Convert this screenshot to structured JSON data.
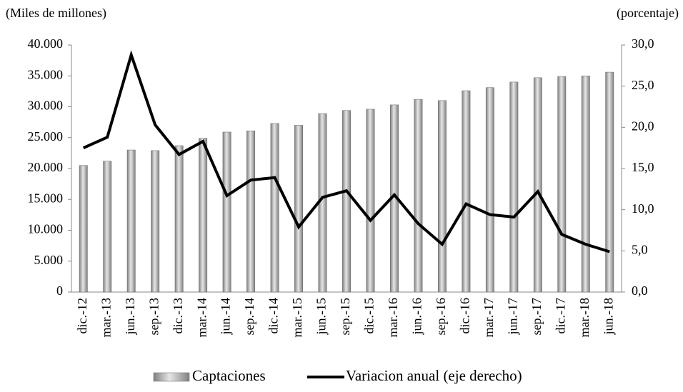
{
  "chart_data": {
    "type": "bar-line",
    "y_label": "(Miles de millones)",
    "y2_label": "(porcentaje)",
    "categories": [
      "dic.-12",
      "mar.-13",
      "jun.-13",
      "sep.-13",
      "dic.-13",
      "mar.-14",
      "jun.-14",
      "sep.-14",
      "dic.-14",
      "mar.-15",
      "jun.-15",
      "sep.-15",
      "dic.-15",
      "mar.-16",
      "jun.-16",
      "sep.-16",
      "dic.-16",
      "mar.-17",
      "jun.-17",
      "sep.-17",
      "dic.-17",
      "mar.-18",
      "jun.-18"
    ],
    "series": [
      {
        "name": "Captaciones",
        "type": "bar",
        "color": "#808080",
        "values": [
          20500,
          21200,
          23000,
          22900,
          23700,
          24900,
          25900,
          26100,
          27300,
          27000,
          28900,
          29400,
          29600,
          30300,
          31200,
          31000,
          32600,
          33100,
          34000,
          34700,
          34900,
          35000,
          35600
        ]
      },
      {
        "name": "Variacion anual (eje derecho)",
        "type": "line",
        "axis": "y2",
        "color": "#000000",
        "values": [
          17.5,
          18.8,
          28.8,
          20.3,
          16.7,
          18.3,
          11.7,
          13.6,
          13.9,
          7.9,
          11.5,
          12.3,
          8.7,
          11.8,
          8.3,
          5.8,
          10.7,
          9.4,
          9.1,
          12.2,
          7.0,
          5.8,
          4.9
        ]
      }
    ],
    "ylim": [
      0,
      40000
    ],
    "yticks": [
      0,
      {
        "value": 5000,
        "label": "5.000"
      },
      {
        "value": 10000,
        "label": "10.000"
      },
      {
        "value": 15000,
        "label": "15.000"
      },
      {
        "value": 20000,
        "label": "20.000"
      },
      {
        "value": 25000,
        "label": "25.000"
      },
      {
        "value": 30000,
        "label": "30.000"
      },
      {
        "value": 35000,
        "label": "35.000"
      },
      {
        "value": 40000,
        "label": "40.000"
      }
    ],
    "y2lim": [
      0,
      30
    ],
    "y2ticks": [
      {
        "value": 0,
        "label": "0,0"
      },
      {
        "value": 5,
        "label": "5,0"
      },
      {
        "value": 10,
        "label": "10,0"
      },
      {
        "value": 15,
        "label": "15,0"
      },
      {
        "value": 20,
        "label": "20,0"
      },
      {
        "value": 25,
        "label": "25,0"
      },
      {
        "value": 30,
        "label": "30,0"
      }
    ],
    "grid": false
  }
}
